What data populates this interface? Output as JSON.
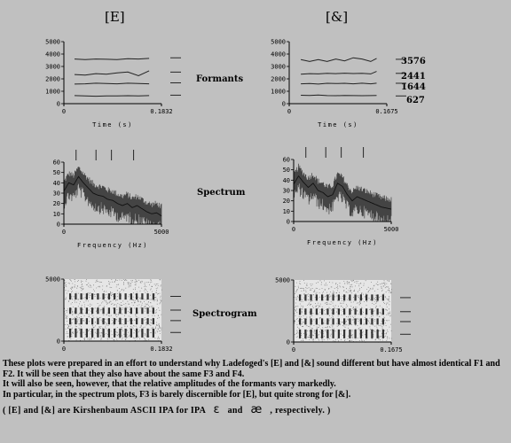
{
  "headings": {
    "left": "[E]",
    "right": "[&]"
  },
  "row_labels": {
    "formants": "Formants",
    "spectrum": "Spectrum",
    "spectrogram": "Spectrogram"
  },
  "formant_labels": [
    "3576",
    "2441",
    "1644",
    "627"
  ],
  "notes": [
    "These plots were prepared in an effort to understand why Ladefoged's [E] and [&] sound different  but have almost identical F1 and F2.  It will be seen that they also have about the same F3 and F4.",
    "It will also be seen, however, that the relative amplitudes of the formants vary markedly.",
    "In particular, in the spectrum plots, F3 is barely discernible for [E], but quite strong for [&]."
  ],
  "footnote": {
    "before": "( [E] and [&] are Kirshenbaum ASCII IPA for IPA",
    "ipa1": "ɛ",
    "middle": "and",
    "ipa2": "æ",
    "after": ", respectively. )"
  },
  "chart_data": [
    {
      "type": "line",
      "panel": "formants-E",
      "xlabel": "Time (s)",
      "ylabel": "",
      "xlim": [
        0,
        0.1832
      ],
      "ylim": [
        0,
        5000
      ],
      "xticks": [
        "0",
        "0.1832"
      ],
      "yticks": [
        "0",
        "1000",
        "2000",
        "3000",
        "4000",
        "5000"
      ],
      "x": [
        0.02,
        0.04,
        0.06,
        0.08,
        0.1,
        0.12,
        0.14,
        0.16
      ],
      "series": [
        {
          "values": [
            3600,
            3550,
            3600,
            3580,
            3560,
            3620,
            3600,
            3650
          ]
        },
        {
          "values": [
            2350,
            2300,
            2420,
            2380,
            2480,
            2550,
            2250,
            2650
          ]
        },
        {
          "values": [
            1580,
            1600,
            1650,
            1620,
            1600,
            1650,
            1620,
            1600
          ]
        },
        {
          "values": [
            650,
            620,
            600,
            630,
            620,
            640,
            620,
            650
          ]
        }
      ],
      "side_ticks": [
        3700,
        2550,
        1680,
        690
      ]
    },
    {
      "type": "line",
      "panel": "formants-ae",
      "xlabel": "Time (s)",
      "ylabel": "",
      "xlim": [
        0,
        0.1675
      ],
      "ylim": [
        0,
        5000
      ],
      "xticks": [
        "0",
        "0.1675"
      ],
      "yticks": [
        "0",
        "1000",
        "2000",
        "3000",
        "4000",
        "5000"
      ],
      "x": [
        0.02,
        0.035,
        0.05,
        0.065,
        0.08,
        0.095,
        0.11,
        0.125,
        0.14,
        0.15
      ],
      "series": [
        {
          "values": [
            3550,
            3400,
            3550,
            3400,
            3600,
            3450,
            3700,
            3600,
            3400,
            3650
          ]
        },
        {
          "values": [
            2380,
            2420,
            2400,
            2450,
            2420,
            2460,
            2430,
            2450,
            2400,
            2600
          ]
        },
        {
          "values": [
            1600,
            1620,
            1580,
            1640,
            1620,
            1640,
            1600,
            1650,
            1600,
            1650
          ]
        },
        {
          "values": [
            680,
            660,
            700,
            650,
            640,
            660,
            650,
            640,
            650,
            660
          ]
        }
      ],
      "side_ticks": [
        3576,
        2441,
        1644,
        627
      ]
    },
    {
      "type": "line",
      "panel": "spectrum-E",
      "xlabel": "Frequency (Hz)",
      "ylabel": "",
      "xlim": [
        0,
        5000
      ],
      "ylim": [
        0,
        60
      ],
      "xticks": [
        "0",
        "5000"
      ],
      "yticks": [
        "0",
        "10",
        "20",
        "30",
        "40",
        "50",
        "60"
      ],
      "x": [
        0,
        250,
        500,
        750,
        1000,
        1250,
        1500,
        1750,
        2000,
        2250,
        2500,
        2750,
        3000,
        3250,
        3500,
        3750,
        4000,
        4250,
        4500,
        4750,
        5000
      ],
      "series": [
        {
          "values": [
            32,
            40,
            38,
            46,
            40,
            35,
            30,
            28,
            27,
            24,
            23,
            20,
            18,
            20,
            16,
            18,
            15,
            12,
            10,
            11,
            8
          ]
        }
      ],
      "formant_ticks": [
        627,
        1644,
        2441,
        3576
      ]
    },
    {
      "type": "line",
      "panel": "spectrum-ae",
      "xlabel": "Frequency (Hz)",
      "ylabel": "",
      "xlim": [
        0,
        5000
      ],
      "ylim": [
        0,
        60
      ],
      "xticks": [
        "0",
        "5000"
      ],
      "yticks": [
        "0",
        "10",
        "20",
        "30",
        "40",
        "50",
        "60"
      ],
      "x": [
        0,
        250,
        500,
        750,
        1000,
        1250,
        1500,
        1750,
        2000,
        2250,
        2500,
        2750,
        3000,
        3250,
        3500,
        3750,
        4000,
        4250,
        4500,
        4750,
        5000
      ],
      "series": [
        {
          "values": [
            36,
            44,
            38,
            33,
            37,
            30,
            28,
            24,
            26,
            37,
            34,
            26,
            20,
            24,
            22,
            20,
            18,
            16,
            14,
            13,
            12
          ]
        }
      ],
      "formant_ticks": [
        627,
        1644,
        2441,
        3576
      ]
    },
    {
      "type": "heatmap",
      "panel": "spectrogram-E",
      "xlabel": "Time (s)",
      "ylabel": "",
      "xlim": [
        0,
        0.1832
      ],
      "ylim": [
        0,
        5000
      ],
      "xticks": [
        "0",
        "0.1832"
      ],
      "yticks": [
        "0",
        "5000"
      ],
      "formant_bands": [
        650,
        1600,
        2450,
        3600
      ],
      "side_ticks": [
        3600,
        2500,
        1650,
        700
      ]
    },
    {
      "type": "heatmap",
      "panel": "spectrogram-ae",
      "xlabel": "Time (s)",
      "ylabel": "",
      "xlim": [
        0,
        0.1675
      ],
      "ylim": [
        0,
        5000
      ],
      "xticks": [
        "0",
        "0.1675"
      ],
      "yticks": [
        "0",
        "5000"
      ],
      "formant_bands": [
        650,
        1650,
        2450,
        3580
      ],
      "side_ticks": [
        3576,
        2441,
        1644,
        627
      ]
    }
  ]
}
